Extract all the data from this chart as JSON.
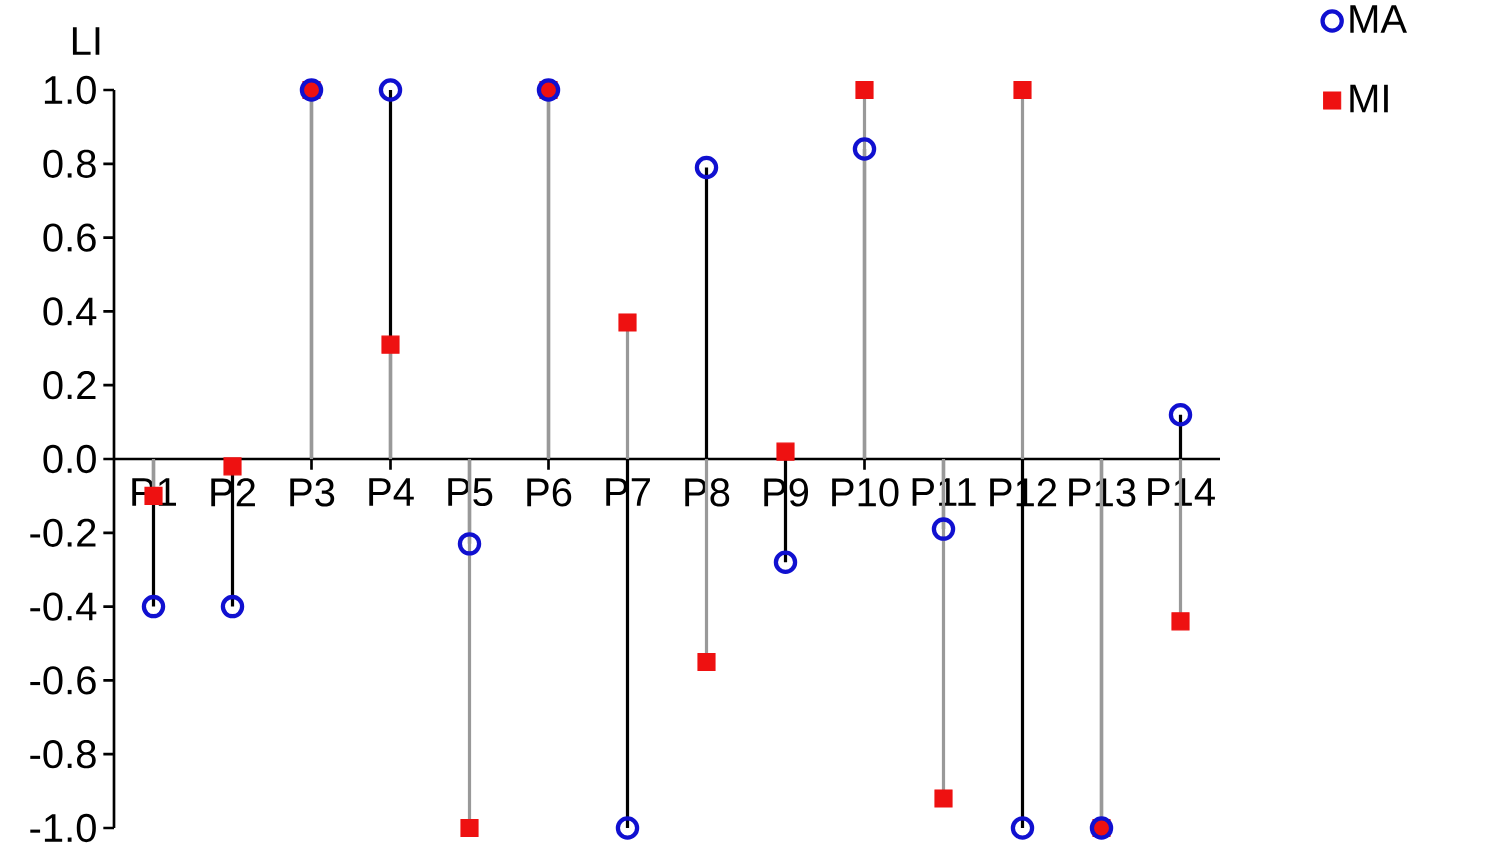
{
  "chart_data": {
    "type": "lollipop",
    "ylabel": "LI",
    "categories": [
      "P1",
      "P2",
      "P3",
      "P4",
      "P5",
      "P6",
      "P7",
      "P8",
      "P9",
      "P10",
      "P11",
      "P12",
      "P13",
      "P14"
    ],
    "series": [
      {
        "name": "MA",
        "color": "#1010d0",
        "marker": "circle",
        "values": [
          -0.4,
          -0.4,
          1.0,
          1.0,
          -0.23,
          1.0,
          -1.0,
          0.79,
          -0.28,
          0.84,
          -0.19,
          -1.0,
          -1.0,
          0.12
        ]
      },
      {
        "name": "MI",
        "color": "#ee1111",
        "marker": "square",
        "values": [
          -0.1,
          -0.02,
          1.0,
          0.31,
          -1.0,
          1.0,
          0.37,
          -0.55,
          0.02,
          1.0,
          -0.92,
          1.0,
          -1.0,
          -0.44
        ]
      }
    ],
    "ylim": [
      -1.0,
      1.0
    ],
    "yticks": [
      {
        "value": -1.0,
        "label": "-1.0"
      },
      -0.8,
      -0.6,
      -0.4,
      -0.2,
      {
        "value": 0.0,
        "label": "0.0"
      },
      0.2,
      0.4,
      0.6,
      0.8,
      {
        "value": 1.0,
        "label": "1.0"
      }
    ],
    "legend": "top right"
  }
}
